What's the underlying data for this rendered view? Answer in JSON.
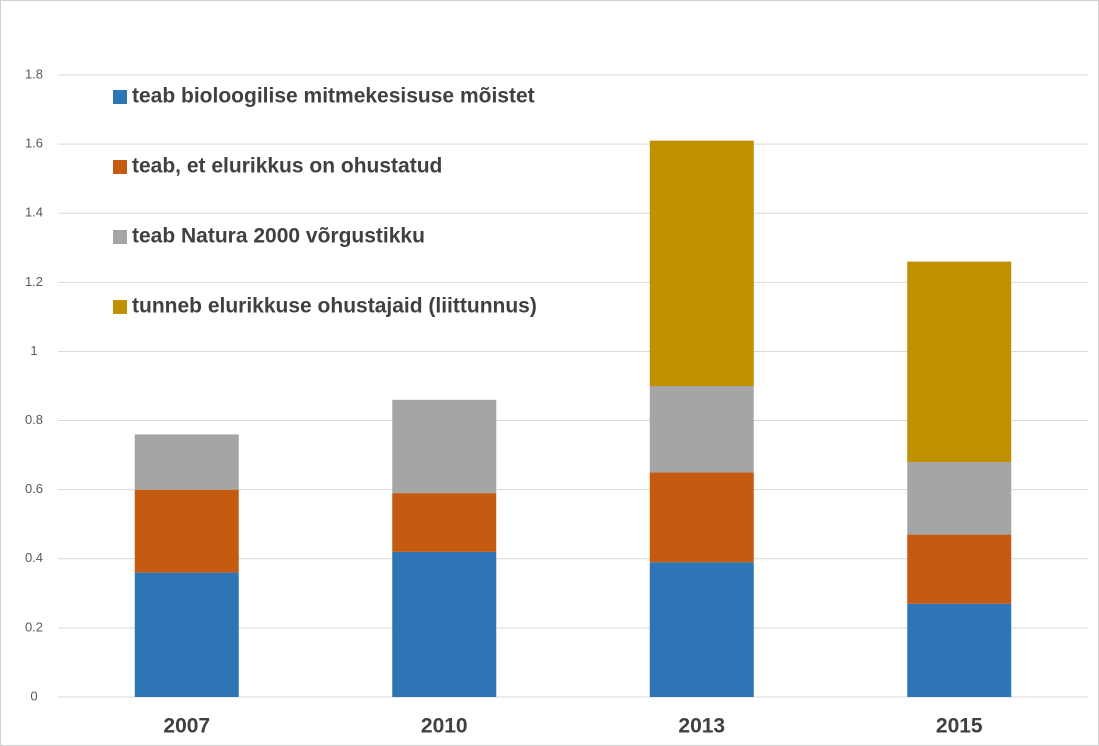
{
  "chart_data": {
    "type": "stacked_bar",
    "categories": [
      "2007",
      "2010",
      "2013",
      "2015"
    ],
    "series": [
      {
        "name": "teab bioloogilise mitmekesisuse mõistet",
        "color": "#2e75b6",
        "values": [
          0.36,
          0.42,
          0.39,
          0.27
        ]
      },
      {
        "name": "teab, et elurikkus on ohustatud",
        "color": "#c55a11",
        "values": [
          0.24,
          0.17,
          0.26,
          0.2
        ]
      },
      {
        "name": "teab Natura 2000 võrgustikku",
        "color": "#a5a5a5",
        "values": [
          0.16,
          0.27,
          0.25,
          0.21
        ]
      },
      {
        "name": "tunneb elurikkuse ohustajaid (liittunnus)",
        "color": "#bf9000",
        "values": [
          null,
          null,
          0.71,
          0.58
        ]
      }
    ],
    "ylim": [
      0,
      1.8
    ],
    "yticks": [
      0,
      0.2,
      0.4,
      0.6,
      0.8,
      1,
      1.2,
      1.4,
      1.6,
      1.8
    ],
    "grid": true,
    "legend": "top-left"
  }
}
